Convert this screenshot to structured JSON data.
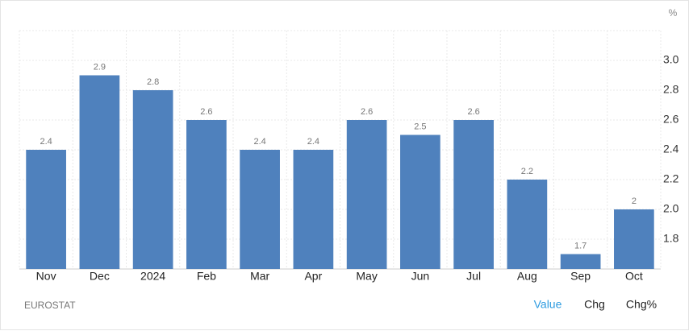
{
  "chart_data": {
    "type": "bar",
    "unit": "%",
    "source": "EUROSTAT",
    "categories": [
      "Nov",
      "Dec",
      "2024",
      "Feb",
      "Mar",
      "Apr",
      "May",
      "Jun",
      "Jul",
      "Aug",
      "Sep",
      "Oct"
    ],
    "values": [
      2.4,
      2.9,
      2.8,
      2.6,
      2.4,
      2.4,
      2.6,
      2.5,
      2.6,
      2.2,
      1.7,
      2
    ],
    "color": "#4f81bd",
    "ylim": [
      1.6,
      3.2
    ],
    "yticks": [
      1.8,
      {
        "value": 2,
        "label": "2.0"
      },
      2.2,
      2.4,
      2.6,
      2.8,
      {
        "value": 3,
        "label": "3.0"
      }
    ],
    "grid": true,
    "buttons": [
      "Value",
      "Chg",
      "Chg%"
    ]
  }
}
